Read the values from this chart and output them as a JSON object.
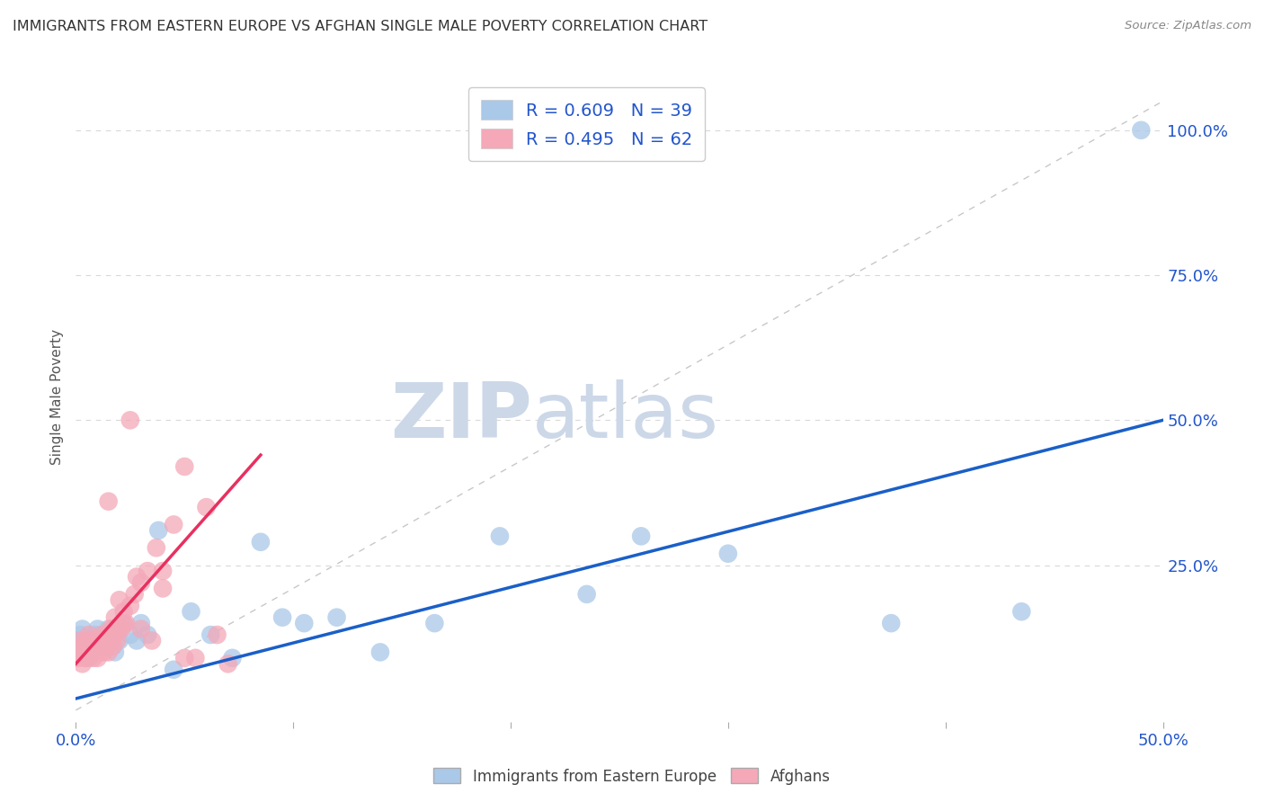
{
  "title": "IMMIGRANTS FROM EASTERN EUROPE VS AFGHAN SINGLE MALE POVERTY CORRELATION CHART",
  "source": "Source: ZipAtlas.com",
  "ylabel": "Single Male Poverty",
  "xlim": [
    0.0,
    0.5
  ],
  "ylim": [
    -0.02,
    1.1
  ],
  "blue_R": 0.609,
  "blue_N": 39,
  "pink_R": 0.495,
  "pink_N": 62,
  "blue_color": "#aac8e8",
  "pink_color": "#f4a8b8",
  "blue_line_color": "#1a5fc8",
  "pink_line_color": "#e83060",
  "diagonal_color": "#c8c8c8",
  "watermark_zip": "ZIP",
  "watermark_atlas": "atlas",
  "watermark_color": "#ccd8e8",
  "blue_line_x0": 0.0,
  "blue_line_y0": 0.02,
  "blue_line_x1": 0.5,
  "blue_line_y1": 0.5,
  "pink_line_x0": 0.0,
  "pink_line_y0": 0.08,
  "pink_line_x1": 0.085,
  "pink_line_y1": 0.44,
  "blue_points_x": [
    0.001,
    0.002,
    0.003,
    0.004,
    0.005,
    0.006,
    0.007,
    0.008,
    0.009,
    0.01,
    0.012,
    0.013,
    0.015,
    0.017,
    0.018,
    0.02,
    0.022,
    0.025,
    0.028,
    0.03,
    0.033,
    0.038,
    0.045,
    0.053,
    0.062,
    0.072,
    0.085,
    0.095,
    0.105,
    0.12,
    0.14,
    0.165,
    0.195,
    0.235,
    0.26,
    0.3,
    0.375,
    0.435,
    0.49
  ],
  "blue_points_y": [
    0.12,
    0.13,
    0.14,
    0.1,
    0.11,
    0.09,
    0.12,
    0.12,
    0.13,
    0.14,
    0.11,
    0.13,
    0.14,
    0.11,
    0.1,
    0.12,
    0.15,
    0.13,
    0.12,
    0.15,
    0.13,
    0.31,
    0.07,
    0.17,
    0.13,
    0.09,
    0.29,
    0.16,
    0.15,
    0.16,
    0.1,
    0.15,
    0.3,
    0.2,
    0.3,
    0.27,
    0.15,
    0.17,
    1.0
  ],
  "pink_points_x": [
    0.001,
    0.001,
    0.002,
    0.002,
    0.003,
    0.003,
    0.004,
    0.004,
    0.005,
    0.005,
    0.006,
    0.006,
    0.007,
    0.007,
    0.008,
    0.008,
    0.009,
    0.009,
    0.01,
    0.01,
    0.011,
    0.011,
    0.012,
    0.012,
    0.013,
    0.013,
    0.014,
    0.014,
    0.015,
    0.015,
    0.016,
    0.016,
    0.017,
    0.017,
    0.018,
    0.018,
    0.019,
    0.02,
    0.021,
    0.022,
    0.023,
    0.025,
    0.027,
    0.03,
    0.033,
    0.037,
    0.04,
    0.045,
    0.05,
    0.055,
    0.06,
    0.065,
    0.07,
    0.015,
    0.02,
    0.022,
    0.025,
    0.028,
    0.03,
    0.035,
    0.04,
    0.05
  ],
  "pink_points_y": [
    0.09,
    0.11,
    0.1,
    0.12,
    0.08,
    0.1,
    0.09,
    0.11,
    0.09,
    0.12,
    0.11,
    0.13,
    0.1,
    0.12,
    0.09,
    0.11,
    0.1,
    0.12,
    0.09,
    0.11,
    0.1,
    0.12,
    0.11,
    0.13,
    0.1,
    0.12,
    0.11,
    0.13,
    0.1,
    0.13,
    0.12,
    0.14,
    0.11,
    0.14,
    0.13,
    0.16,
    0.12,
    0.14,
    0.14,
    0.17,
    0.15,
    0.18,
    0.2,
    0.22,
    0.24,
    0.28,
    0.24,
    0.32,
    0.42,
    0.09,
    0.35,
    0.13,
    0.08,
    0.36,
    0.19,
    0.15,
    0.5,
    0.23,
    0.14,
    0.12,
    0.21,
    0.09
  ]
}
